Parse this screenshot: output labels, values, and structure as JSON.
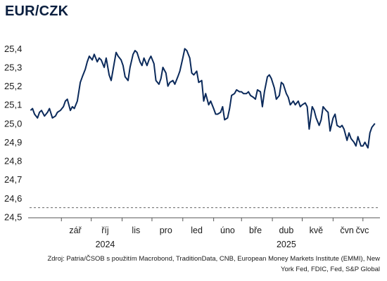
{
  "chart_data": {
    "type": "line",
    "title": "EUR/CZK",
    "yticks": [
      "25,4",
      "25,3",
      "25,2",
      "25,1",
      "25,0",
      "24,9",
      "24,8",
      "24,7",
      "24,6",
      "24,5"
    ],
    "ylim": [
      24.5,
      25.45
    ],
    "xticks": [
      "zář",
      "říj",
      "lis",
      "pro",
      "led",
      "úno",
      "bře",
      "dub",
      "kvě",
      "čvn",
      "čvc"
    ],
    "year_labels": [
      "2024",
      "2025"
    ],
    "reference_line": {
      "value": 24.55,
      "style": "dashed"
    },
    "grid": false,
    "x": [
      "2024-08-01",
      "2024-08-03",
      "2024-08-05",
      "2024-08-08",
      "2024-08-10",
      "2024-08-12",
      "2024-08-15",
      "2024-08-18",
      "2024-08-20",
      "2024-08-23",
      "2024-08-26",
      "2024-08-28",
      "2024-08-31",
      "2024-09-03",
      "2024-09-05",
      "2024-09-07",
      "2024-09-10",
      "2024-09-12",
      "2024-09-14",
      "2024-09-17",
      "2024-09-20",
      "2024-09-22",
      "2024-09-25",
      "2024-09-27",
      "2024-09-29",
      "2024-10-02",
      "2024-10-04",
      "2024-10-07",
      "2024-10-09",
      "2024-10-11",
      "2024-10-14",
      "2024-10-16",
      "2024-10-19",
      "2024-10-21",
      "2024-10-24",
      "2024-10-26",
      "2024-10-28",
      "2024-10-31",
      "2024-11-02",
      "2024-11-04",
      "2024-11-07",
      "2024-11-09",
      "2024-11-12",
      "2024-11-14",
      "2024-11-16",
      "2024-11-19",
      "2024-11-21",
      "2024-11-23",
      "2024-11-26",
      "2024-11-28",
      "2024-11-30",
      "2024-12-03",
      "2024-12-05",
      "2024-12-08",
      "2024-12-10",
      "2024-12-12",
      "2024-12-15",
      "2024-12-17",
      "2024-12-19",
      "2024-12-22",
      "2024-12-24",
      "2024-12-27",
      "2024-12-29",
      "2025-01-01",
      "2025-01-03",
      "2025-01-05",
      "2025-01-08",
      "2025-01-10",
      "2025-01-12",
      "2025-01-15",
      "2025-01-17",
      "2025-01-20",
      "2025-01-22",
      "2025-01-24",
      "2025-01-27",
      "2025-01-29",
      "2025-02-01",
      "2025-02-03",
      "2025-02-05",
      "2025-02-08",
      "2025-02-10",
      "2025-02-12",
      "2025-02-15",
      "2025-02-17",
      "2025-02-19",
      "2025-02-22",
      "2025-02-24",
      "2025-02-27",
      "2025-03-01",
      "2025-03-03",
      "2025-03-06",
      "2025-03-08",
      "2025-03-10",
      "2025-03-13",
      "2025-03-15",
      "2025-03-17",
      "2025-03-20",
      "2025-03-22",
      "2025-03-24",
      "2025-03-27",
      "2025-03-29",
      "2025-03-31",
      "2025-04-03",
      "2025-04-05",
      "2025-04-08",
      "2025-04-10",
      "2025-04-12",
      "2025-04-15",
      "2025-04-17",
      "2025-04-19",
      "2025-04-22",
      "2025-04-24",
      "2025-04-27",
      "2025-04-29",
      "2025-05-01",
      "2025-05-04",
      "2025-05-06",
      "2025-05-08",
      "2025-05-11",
      "2025-05-13",
      "2025-05-15",
      "2025-05-18",
      "2025-05-20",
      "2025-05-22",
      "2025-05-25",
      "2025-05-27",
      "2025-05-29",
      "2025-06-01",
      "2025-06-03",
      "2025-06-05",
      "2025-06-08",
      "2025-06-10",
      "2025-06-12",
      "2025-06-15",
      "2025-06-17",
      "2025-06-19",
      "2025-06-22",
      "2025-06-24",
      "2025-06-26",
      "2025-06-29",
      "2025-07-01",
      "2025-07-03",
      "2025-07-06",
      "2025-07-08",
      "2025-07-10",
      "2025-07-13"
    ],
    "values": [
      25.07,
      25.08,
      25.05,
      25.03,
      25.06,
      25.07,
      25.04,
      25.06,
      25.08,
      25.03,
      25.04,
      25.06,
      25.07,
      25.09,
      25.12,
      25.13,
      25.07,
      25.09,
      25.08,
      25.12,
      25.22,
      25.25,
      25.29,
      25.33,
      25.36,
      25.34,
      25.37,
      25.33,
      25.35,
      25.34,
      25.3,
      25.35,
      25.26,
      25.23,
      25.32,
      25.38,
      25.36,
      25.34,
      25.31,
      25.25,
      25.23,
      25.3,
      25.37,
      25.39,
      25.38,
      25.33,
      25.31,
      25.35,
      25.31,
      25.34,
      25.36,
      25.32,
      25.23,
      25.21,
      25.24,
      25.3,
      25.27,
      25.2,
      25.22,
      25.23,
      25.21,
      25.25,
      25.28,
      25.35,
      25.4,
      25.39,
      25.35,
      25.27,
      25.26,
      25.28,
      25.22,
      25.23,
      25.12,
      25.16,
      25.1,
      25.12,
      25.08,
      25.05,
      25.05,
      25.06,
      25.09,
      25.02,
      25.03,
      25.08,
      25.15,
      25.16,
      25.18,
      25.17,
      25.17,
      25.16,
      25.16,
      25.17,
      25.15,
      25.14,
      25.13,
      25.18,
      25.17,
      25.09,
      25.17,
      25.25,
      25.26,
      25.24,
      25.19,
      25.13,
      25.15,
      25.22,
      25.21,
      25.16,
      25.14,
      25.1,
      25.12,
      25.1,
      25.12,
      25.09,
      25.1,
      25.11,
      25.09,
      24.97,
      25.09,
      25.07,
      25.03,
      24.99,
      25.02,
      25.09,
      25.07,
      25.06,
      24.96,
      25.03,
      25.05,
      24.99,
      24.98,
      24.99,
      24.97,
      24.91,
      24.95,
      24.92,
      24.9,
      24.88,
      24.93,
      24.88,
      24.88,
      24.9,
      24.87,
      24.95,
      24.98,
      25.0
    ]
  },
  "source_text": "Zdroj: Patria/ČSOB s použitím Macrobond, TraditionData, CNB, European Money Markets Institute (EMMI), New York Fed, FDIC, Fed, S&P Global",
  "colors": {
    "line": "#0b2a5b",
    "text": "#1a1a1a",
    "axis": "#555555"
  }
}
